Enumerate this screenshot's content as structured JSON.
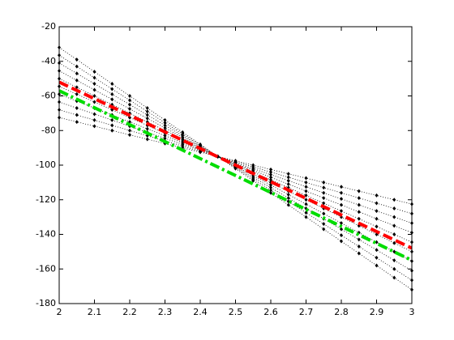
{
  "chart_data": {
    "type": "line",
    "x": [
      2,
      2.05,
      2.1,
      2.15,
      2.2,
      2.25,
      2.3,
      2.35,
      2.4,
      2.45,
      2.5,
      2.55,
      2.6,
      2.65,
      2.7,
      2.75,
      2.8,
      2.85,
      2.9,
      2.95,
      3
    ],
    "xlim": [
      2,
      3
    ],
    "ylim": [
      -180,
      -20
    ],
    "xticks": [
      2,
      2.1,
      2.2,
      2.3,
      2.4,
      2.5,
      2.6,
      2.7,
      2.8,
      2.9,
      3
    ],
    "yticks": [
      -180,
      -160,
      -140,
      -120,
      -100,
      -80,
      -60,
      -40,
      -20
    ],
    "grid": false,
    "series": [
      {
        "color": "#000000",
        "style": "dotted-markers",
        "values": [
          -32,
          -39,
          -46,
          -53,
          -60,
          -67,
          -74,
          -81,
          -88,
          -95,
          -102,
          -109,
          -116,
          -123,
          -130,
          -137,
          -144,
          -151,
          -158,
          -165,
          -172
        ]
      },
      {
        "color": "#000000",
        "style": "dotted-markers",
        "values": [
          -36.5,
          -43,
          -49.5,
          -56,
          -62.5,
          -69,
          -75.5,
          -82,
          -88.5,
          -95,
          -101.5,
          -108,
          -114.5,
          -121,
          -127.5,
          -134,
          -140.5,
          -147,
          -153.5,
          -160,
          -166.5
        ]
      },
      {
        "color": "#000000",
        "style": "dotted-markers",
        "values": [
          -41,
          -47,
          -53,
          -59,
          -65,
          -71,
          -77,
          -83,
          -89,
          -95,
          -101,
          -107,
          -113,
          -119,
          -125,
          -131,
          -137,
          -143,
          -149,
          -155,
          -161
        ]
      },
      {
        "color": "#000000",
        "style": "dotted-markers",
        "values": [
          -45.5,
          -51,
          -56.5,
          -62,
          -67.5,
          -73,
          -78.5,
          -84,
          -89.5,
          -95,
          -100.5,
          -106,
          -111.5,
          -117,
          -122.5,
          -128,
          -133.5,
          -139,
          -144.5,
          -150,
          -155.5
        ]
      },
      {
        "color": "#000000",
        "style": "dotted-markers",
        "values": [
          -50,
          -55,
          -60,
          -65,
          -70,
          -75,
          -80,
          -85,
          -90,
          -95,
          -100,
          -105,
          -110,
          -115,
          -120,
          -125,
          -130,
          -135,
          -140,
          -145,
          -150
        ]
      },
      {
        "color": "#000000",
        "style": "dotted-markers",
        "values": [
          -54.5,
          -59,
          -63.5,
          -68,
          -72.5,
          -77,
          -81.5,
          -86,
          -90.5,
          -95,
          -99.5,
          -104,
          -108.5,
          -113,
          -117.5,
          -122,
          -126.5,
          -131,
          -135.5,
          -140,
          -144.5
        ]
      },
      {
        "color": "#000000",
        "style": "dotted-markers",
        "values": [
          -59,
          -63,
          -67,
          -71,
          -75,
          -79,
          -83,
          -87,
          -91,
          -95,
          -99,
          -103,
          -107,
          -111,
          -115,
          -119,
          -123,
          -127,
          -131,
          -135,
          -139
        ]
      },
      {
        "color": "#000000",
        "style": "dotted-markers",
        "values": [
          -63.5,
          -67,
          -70.5,
          -74,
          -77.5,
          -81,
          -84.5,
          -88,
          -91.5,
          -95,
          -98.5,
          -102,
          -105.5,
          -109,
          -112.5,
          -116,
          -119.5,
          -123,
          -126.5,
          -130,
          -133.5
        ]
      },
      {
        "color": "#000000",
        "style": "dotted-markers",
        "values": [
          -68,
          -71,
          -74,
          -77,
          -80,
          -83,
          -86,
          -89,
          -92,
          -95,
          -98,
          -101,
          -104,
          -107,
          -110,
          -113,
          -116,
          -119,
          -122,
          -125,
          -128
        ]
      },
      {
        "color": "#000000",
        "style": "dotted-markers",
        "values": [
          -72.5,
          -75,
          -77.5,
          -80,
          -82.5,
          -85,
          -87.5,
          -90,
          -92.5,
          -95,
          -97.5,
          -100,
          -102.5,
          -105,
          -107.5,
          -110,
          -112.5,
          -115,
          -117.5,
          -120,
          -122.5
        ]
      },
      {
        "color": "#00dd00",
        "style": "dashdot",
        "x": [
          2,
          3
        ],
        "values": [
          -57,
          -155
        ]
      },
      {
        "color": "#ff0000",
        "style": "dashed",
        "x": [
          2,
          3
        ],
        "values": [
          -52,
          -148
        ]
      }
    ]
  }
}
